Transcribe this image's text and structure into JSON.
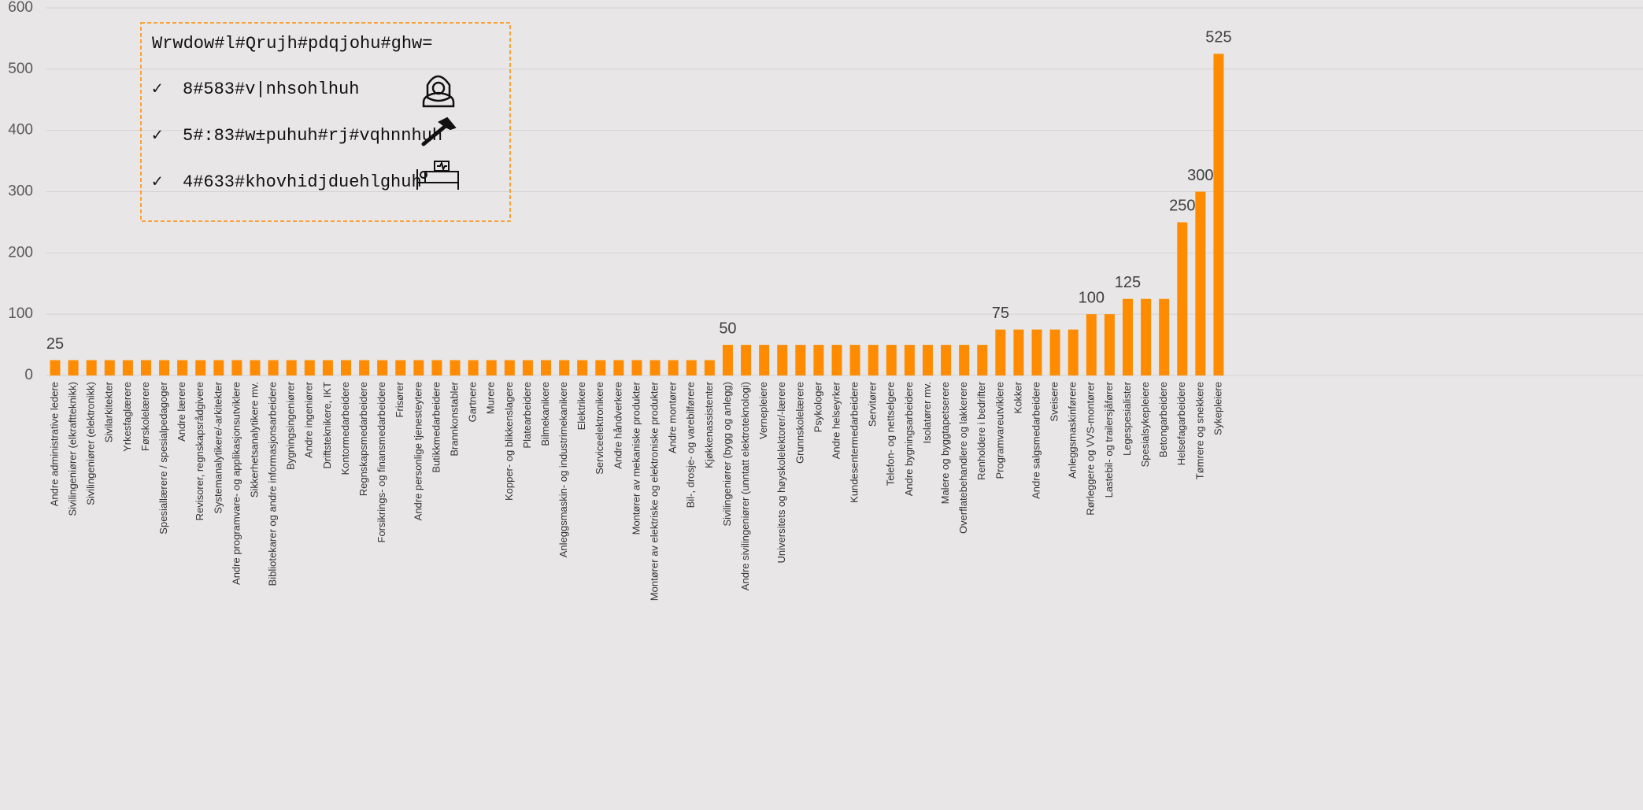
{
  "chart_data": {
    "type": "bar",
    "categories": [
      "Andre administrative ledere",
      "Sivilingeniører (elkraftteknikk)",
      "Sivilingeniører (elektronikk)",
      "Sivilarkitekter",
      "Yrkesfaglærere",
      "Førskolelærere",
      "Spesiallærere / spesialpedagoger",
      "Andre lærere",
      "Revisorer, regnskapsrådgivere",
      "Systemanalytikere/-arkitekter",
      "Andre programvare- og applikasjonsutviklere",
      "Sikkerhetsanalytikere mv.",
      "Bibliotekarer og andre informasjonsarbeidere",
      "Bygningsingeniører",
      "Andre ingeniører",
      "Driftsteknikere, IKT",
      "Kontormedarbeidere",
      "Regnskapsmedarbeidere",
      "Forsikrings- og finansmedarbeidere",
      "Frisører",
      "Andre personlige tjenesteytere",
      "Butikkmedarbeidere",
      "Brannkonstabler",
      "Gartnere",
      "Murere",
      "Kopper- og blikkenslagere",
      "Platearbeidere",
      "Bilmekanikere",
      "Anleggsmaskin- og industrimekanikere",
      "Elektrikere",
      "Serviceelektronikere",
      "Andre håndverkere",
      "Montører av mekaniske produkter",
      "Montører av elektriske og elektroniske produkter",
      "Andre montører",
      "Bil-, drosje- og varebilførere",
      "Kjøkkenassistenter",
      "Sivilingeniører (bygg og anlegg)",
      "Andre sivilingeniører (unntatt elektroteknologi)",
      "Vernepleiere",
      "Universitets  og høyskolelektorer/-lærere",
      "Grunnskolelærere",
      "Psykologer",
      "Andre helseyrker",
      "Kundesentermedarbeidere",
      "Servitører",
      "Telefon- og nettselgere",
      "Andre bygningsarbeidere",
      "Isolatører mv.",
      "Malere og byggtapetserere",
      "Overflatebehandlere og lakkerere",
      "Renholdere i bedrifter",
      "Programvareutviklere",
      "Kokker",
      "Andre salgsmedarbeidere",
      "Sveisere",
      "Anleggsmaskinførere",
      "Rørleggere og VVS-montører",
      "Lastebil- og trailersjåfører",
      "Legespesialister",
      "Spesialsykepleiere",
      "Betongarbeidere",
      "Helsefagarbeidere",
      "Tømrere og snekkere",
      "Sykepleiere"
    ],
    "values": [
      25,
      25,
      25,
      25,
      25,
      25,
      25,
      25,
      25,
      25,
      25,
      25,
      25,
      25,
      25,
      25,
      25,
      25,
      25,
      25,
      25,
      25,
      25,
      25,
      25,
      25,
      25,
      25,
      25,
      25,
      25,
      25,
      25,
      25,
      25,
      25,
      25,
      50,
      50,
      50,
      50,
      50,
      50,
      50,
      50,
      50,
      50,
      50,
      50,
      50,
      50,
      50,
      75,
      75,
      75,
      75,
      75,
      100,
      100,
      125,
      125,
      125,
      250,
      300,
      525
    ],
    "value_labels": [
      "25",
      null,
      null,
      null,
      null,
      null,
      null,
      null,
      null,
      null,
      null,
      null,
      null,
      null,
      null,
      null,
      null,
      null,
      null,
      null,
      null,
      null,
      null,
      null,
      null,
      null,
      null,
      null,
      null,
      null,
      null,
      null,
      null,
      null,
      null,
      null,
      null,
      "50",
      null,
      null,
      null,
      null,
      null,
      null,
      null,
      null,
      null,
      null,
      null,
      null,
      null,
      null,
      "75",
      null,
      null,
      null,
      null,
      "100",
      null,
      "125",
      null,
      null,
      "250",
      "300",
      "525"
    ],
    "color": "#ff8c00",
    "ylim": [
      0,
      600
    ],
    "yticks": [
      0,
      100,
      200,
      300,
      400,
      500,
      600
    ],
    "grid": true,
    "annotation": {
      "title": "Wrwdow#l#Qrujh#pdqjohu#ghw=",
      "bullet": "✓",
      "items": [
        "8#583#v|nhsohlhuh",
        "5#:83#w±puhuh#rj#vqhnnhuh",
        "4#633#khovhidjduehlghuh"
      ]
    }
  }
}
